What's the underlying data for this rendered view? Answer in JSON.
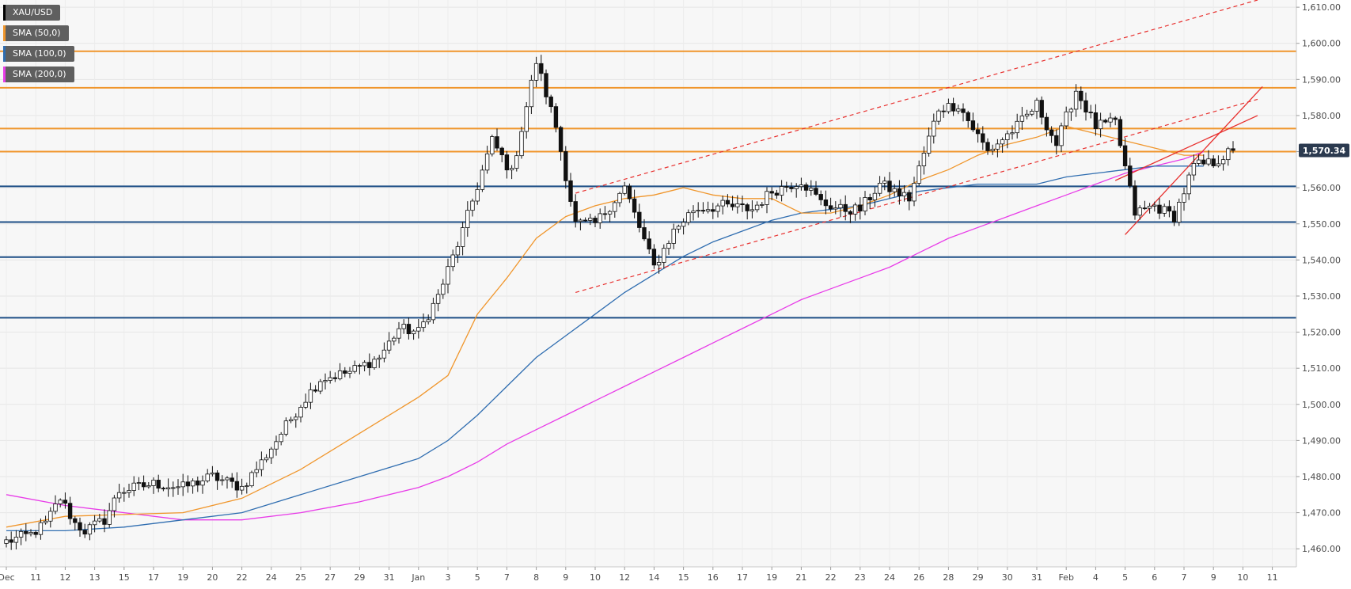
{
  "chart_data": {
    "type": "candlestick",
    "symbol": "XAU/USD",
    "legend": [
      {
        "label": "XAU/USD",
        "color": "#000000"
      },
      {
        "label": "SMA (50,0)",
        "color": "#f0962c"
      },
      {
        "label": "SMA (100,0)",
        "color": "#2f6db0"
      },
      {
        "label": "SMA (200,0)",
        "color": "#e83ce8"
      }
    ],
    "last_price": "1,570.34",
    "last_price_value": 1570.34,
    "ylim": [
      1455,
      1612
    ],
    "y_ticks": [
      "1,460.00",
      "1,470.00",
      "1,480.00",
      "1,490.00",
      "1,500.00",
      "1,510.00",
      "1,520.00",
      "1,530.00",
      "1,540.00",
      "1,550.00",
      "1,560.00",
      "1,570.00",
      "1,580.00",
      "1,590.00",
      "1,600.00",
      "1,610.00"
    ],
    "y_tick_values": [
      1460,
      1470,
      1480,
      1490,
      1500,
      1510,
      1520,
      1530,
      1540,
      1550,
      1560,
      1570,
      1580,
      1590,
      1600,
      1610
    ],
    "x_ticks": [
      "Dec",
      "11",
      "12",
      "13",
      "15",
      "17",
      "19",
      "20",
      "22",
      "24",
      "25",
      "27",
      "29",
      "31",
      "Jan",
      "3",
      "5",
      "7",
      "8",
      "9",
      "10",
      "12",
      "14",
      "15",
      "16",
      "17",
      "19",
      "21",
      "22",
      "23",
      "24",
      "26",
      "28",
      "29",
      "30",
      "31",
      "Feb",
      "4",
      "5",
      "6",
      "7",
      "9",
      "10",
      "11"
    ],
    "x_tick_bars": [
      0,
      6,
      12,
      18,
      24,
      30,
      36,
      42,
      48,
      54,
      60,
      66,
      72,
      78,
      84,
      90,
      96,
      102,
      108,
      114,
      120,
      126,
      132,
      138,
      144,
      150,
      156,
      162,
      168,
      174,
      180,
      186,
      192,
      198,
      204,
      210,
      216,
      222,
      228,
      234,
      240,
      246,
      252,
      258
    ],
    "horizontal_levels": {
      "resistance": [
        1597.8,
        1587.7,
        1576.4,
        1570.0
      ],
      "support": [
        1560.4,
        1550.5,
        1540.8,
        1524.0
      ]
    },
    "channel_dashed": [
      {
        "x1": 116,
        "y1": 1558.5,
        "x2": 255,
        "y2": 1612.0
      },
      {
        "x1": 116,
        "y1": 1531.0,
        "x2": 255,
        "y2": 1584.5
      }
    ],
    "wedge_solid": [
      {
        "x1": 226,
        "y1": 1562.0,
        "x2": 255,
        "y2": 1580.0
      },
      {
        "x1": 228,
        "y1": 1547.0,
        "x2": 256,
        "y2": 1588.0
      }
    ],
    "sma50": [
      [
        0,
        1466
      ],
      [
        12,
        1469
      ],
      [
        24,
        1469.5
      ],
      [
        36,
        1470
      ],
      [
        48,
        1474
      ],
      [
        60,
        1482
      ],
      [
        72,
        1492
      ],
      [
        84,
        1502
      ],
      [
        90,
        1508
      ],
      [
        96,
        1525
      ],
      [
        102,
        1535
      ],
      [
        108,
        1546
      ],
      [
        114,
        1552
      ],
      [
        120,
        1555
      ],
      [
        126,
        1557
      ],
      [
        132,
        1558
      ],
      [
        138,
        1560
      ],
      [
        144,
        1558
      ],
      [
        150,
        1557
      ],
      [
        156,
        1557
      ],
      [
        162,
        1553
      ],
      [
        168,
        1553
      ],
      [
        174,
        1555
      ],
      [
        180,
        1558
      ],
      [
        186,
        1562
      ],
      [
        192,
        1565
      ],
      [
        198,
        1569
      ],
      [
        204,
        1572
      ],
      [
        210,
        1574
      ],
      [
        216,
        1577
      ],
      [
        222,
        1575
      ],
      [
        228,
        1573
      ],
      [
        234,
        1571
      ],
      [
        240,
        1569
      ],
      [
        244,
        1569
      ]
    ],
    "sma100": [
      [
        0,
        1465
      ],
      [
        12,
        1465
      ],
      [
        24,
        1466
      ],
      [
        36,
        1468
      ],
      [
        48,
        1470
      ],
      [
        60,
        1475
      ],
      [
        72,
        1480
      ],
      [
        84,
        1485
      ],
      [
        90,
        1490
      ],
      [
        96,
        1497
      ],
      [
        102,
        1505
      ],
      [
        108,
        1513
      ],
      [
        114,
        1519
      ],
      [
        120,
        1525
      ],
      [
        126,
        1531
      ],
      [
        132,
        1536
      ],
      [
        138,
        1541
      ],
      [
        144,
        1545
      ],
      [
        150,
        1548
      ],
      [
        156,
        1551
      ],
      [
        162,
        1553
      ],
      [
        168,
        1554
      ],
      [
        174,
        1555
      ],
      [
        180,
        1557
      ],
      [
        186,
        1559
      ],
      [
        192,
        1560
      ],
      [
        198,
        1561
      ],
      [
        204,
        1561
      ],
      [
        210,
        1561
      ],
      [
        216,
        1563
      ],
      [
        222,
        1564
      ],
      [
        228,
        1565
      ],
      [
        234,
        1566
      ],
      [
        240,
        1566
      ],
      [
        244,
        1566
      ]
    ],
    "sma200": [
      [
        0,
        1475
      ],
      [
        12,
        1472
      ],
      [
        24,
        1470
      ],
      [
        36,
        1468
      ],
      [
        48,
        1468
      ],
      [
        60,
        1470
      ],
      [
        72,
        1473
      ],
      [
        84,
        1477
      ],
      [
        90,
        1480
      ],
      [
        96,
        1484
      ],
      [
        102,
        1489
      ],
      [
        108,
        1493
      ],
      [
        114,
        1497
      ],
      [
        120,
        1501
      ],
      [
        126,
        1505
      ],
      [
        132,
        1509
      ],
      [
        138,
        1513
      ],
      [
        144,
        1517
      ],
      [
        150,
        1521
      ],
      [
        156,
        1525
      ],
      [
        162,
        1529
      ],
      [
        168,
        1532
      ],
      [
        174,
        1535
      ],
      [
        180,
        1538
      ],
      [
        186,
        1542
      ],
      [
        192,
        1546
      ],
      [
        198,
        1549
      ],
      [
        204,
        1552
      ],
      [
        210,
        1555
      ],
      [
        216,
        1558
      ],
      [
        222,
        1561
      ],
      [
        228,
        1564
      ],
      [
        234,
        1566
      ],
      [
        240,
        1568
      ],
      [
        244,
        1570
      ]
    ],
    "anchors": [
      [
        0,
        1462
      ],
      [
        5,
        1464
      ],
      [
        8,
        1467
      ],
      [
        11,
        1474
      ],
      [
        14,
        1467
      ],
      [
        16,
        1465
      ],
      [
        20,
        1468
      ],
      [
        23,
        1476
      ],
      [
        30,
        1478
      ],
      [
        36,
        1477
      ],
      [
        42,
        1480
      ],
      [
        48,
        1477
      ],
      [
        52,
        1484
      ],
      [
        56,
        1492
      ],
      [
        60,
        1500
      ],
      [
        64,
        1507
      ],
      [
        70,
        1509
      ],
      [
        76,
        1513
      ],
      [
        80,
        1521
      ],
      [
        84,
        1520
      ],
      [
        88,
        1530
      ],
      [
        93,
        1548
      ],
      [
        99,
        1573
      ],
      [
        103,
        1564
      ],
      [
        108,
        1595
      ],
      [
        112,
        1577
      ],
      [
        116,
        1550
      ],
      [
        120,
        1550
      ],
      [
        126,
        1560
      ],
      [
        132,
        1538
      ],
      [
        136,
        1548
      ],
      [
        140,
        1554
      ],
      [
        146,
        1555
      ],
      [
        152,
        1554
      ],
      [
        156,
        1559
      ],
      [
        162,
        1562
      ],
      [
        166,
        1556
      ],
      [
        170,
        1554
      ],
      [
        174,
        1554
      ],
      [
        178,
        1561
      ],
      [
        184,
        1557
      ],
      [
        190,
        1582
      ],
      [
        194,
        1583
      ],
      [
        200,
        1570
      ],
      [
        206,
        1577
      ],
      [
        210,
        1583
      ],
      [
        214,
        1572
      ],
      [
        218,
        1587
      ],
      [
        222,
        1577
      ],
      [
        226,
        1578
      ],
      [
        230,
        1553
      ],
      [
        234,
        1555
      ],
      [
        238,
        1552
      ],
      [
        242,
        1566
      ],
      [
        246,
        1567
      ],
      [
        250,
        1570.34
      ]
    ]
  }
}
